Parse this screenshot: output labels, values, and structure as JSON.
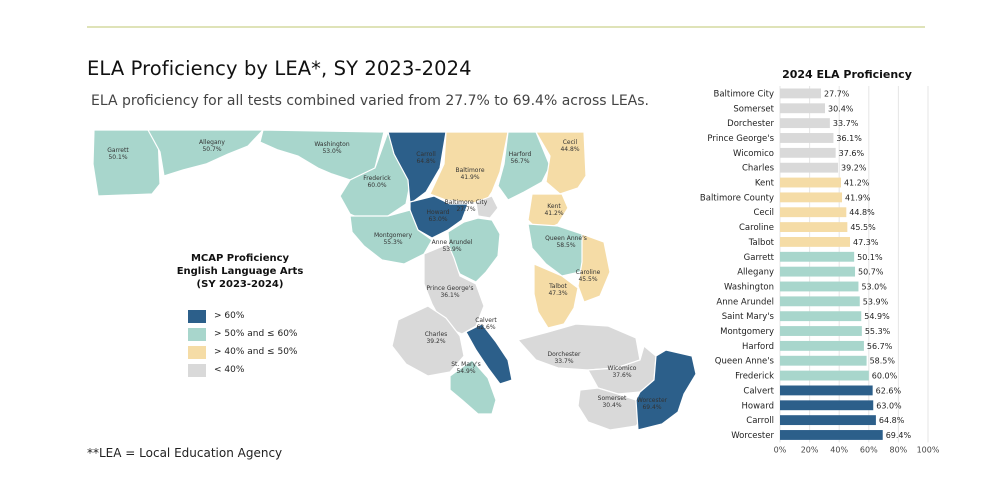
{
  "header": {
    "title": "ELA Proficiency by LEA*, SY 2023-2024",
    "subtitle": "ELA proficiency for all tests combined varied from 27.7% to 69.4% across LEAs."
  },
  "footnote": "**LEA = Local Education Agency",
  "colors": {
    "above60": "#2c5f8a",
    "50to60": "#a8d6cc",
    "40to50": "#f5dca6",
    "below40": "#d9d9d9",
    "rule": "#dfe3b8",
    "grid": "#e5e5e5"
  },
  "legend": {
    "title_lines": [
      "MCAP Proficiency",
      "English Language Arts",
      "(SY 2023-2024)"
    ],
    "items": [
      {
        "label": "> 60%",
        "color_key": "above60"
      },
      {
        "label": "> 50% and ≤ 60%",
        "color_key": "50to60"
      },
      {
        "label": "> 40% and ≤ 50%",
        "color_key": "40to50"
      },
      {
        "label": "< 40%",
        "color_key": "below40"
      }
    ]
  },
  "map": {
    "counties": [
      {
        "name": "Garrett",
        "value": "50.1%"
      },
      {
        "name": "Allegany",
        "value": "50.7%"
      },
      {
        "name": "Washington",
        "value": "53.0%"
      },
      {
        "name": "Frederick",
        "value": "60.0%"
      },
      {
        "name": "Carroll",
        "value": "64.8%"
      },
      {
        "name": "Baltimore",
        "value": "41.9%"
      },
      {
        "name": "Harford",
        "value": "56.7%"
      },
      {
        "name": "Cecil",
        "value": "44.8%"
      },
      {
        "name": "Howard",
        "value": "63.0%"
      },
      {
        "name": "Montgomery",
        "value": "55.3%"
      },
      {
        "name": "Baltimore City",
        "value": "27.7%"
      },
      {
        "name": "Anne Arundel",
        "value": "53.9%"
      },
      {
        "name": "Kent",
        "value": "41.2%"
      },
      {
        "name": "Queen Anne's",
        "value": "58.5%"
      },
      {
        "name": "Caroline",
        "value": "45.5%"
      },
      {
        "name": "Prince George's",
        "value": "36.1%"
      },
      {
        "name": "Talbot",
        "value": "47.3%"
      },
      {
        "name": "Calvert",
        "value": "62.6%"
      },
      {
        "name": "Charles",
        "value": "39.2%"
      },
      {
        "name": "Dorchester",
        "value": "33.7%"
      },
      {
        "name": "St. Mary's",
        "value": "54.9%"
      },
      {
        "name": "Wicomico",
        "value": "37.6%"
      },
      {
        "name": "Somerset",
        "value": "30.4%"
      },
      {
        "name": "Worcester",
        "value": "69.4%"
      }
    ]
  },
  "chart_data": {
    "type": "bar",
    "orientation": "horizontal",
    "title": "2024 ELA Proficiency",
    "categories": [
      "Baltimore City",
      "Somerset",
      "Dorchester",
      "Prince George's",
      "Wicomico",
      "Charles",
      "Kent",
      "Baltimore County",
      "Cecil",
      "Caroline",
      "Talbot",
      "Garrett",
      "Allegany",
      "Washington",
      "Anne Arundel",
      "Saint Mary's",
      "Montgomery",
      "Harford",
      "Queen Anne's",
      "Frederick",
      "Calvert",
      "Howard",
      "Carroll",
      "Worcester"
    ],
    "values": [
      27.7,
      30.4,
      33.7,
      36.1,
      37.6,
      39.2,
      41.2,
      41.9,
      44.8,
      45.5,
      47.3,
      50.1,
      50.7,
      53.0,
      53.9,
      54.9,
      55.3,
      56.7,
      58.5,
      60.0,
      62.6,
      63.0,
      64.8,
      69.4
    ],
    "value_labels": [
      "27.7%",
      "30.4%",
      "33.7%",
      "36.1%",
      "37.6%",
      "39.2%",
      "41.2%",
      "41.9%",
      "44.8%",
      "45.5%",
      "47.3%",
      "50.1%",
      "50.7%",
      "53.0%",
      "53.9%",
      "54.9%",
      "55.3%",
      "56.7%",
      "58.5%",
      "60.0%",
      "62.6%",
      "63.0%",
      "64.8%",
      "69.4%"
    ],
    "xlim": [
      0,
      100
    ],
    "xticks": [
      0,
      20,
      40,
      60,
      80,
      100
    ],
    "xtick_labels": [
      "0%",
      "20%",
      "40%",
      "60%",
      "80%",
      "100%"
    ],
    "grid": true
  }
}
